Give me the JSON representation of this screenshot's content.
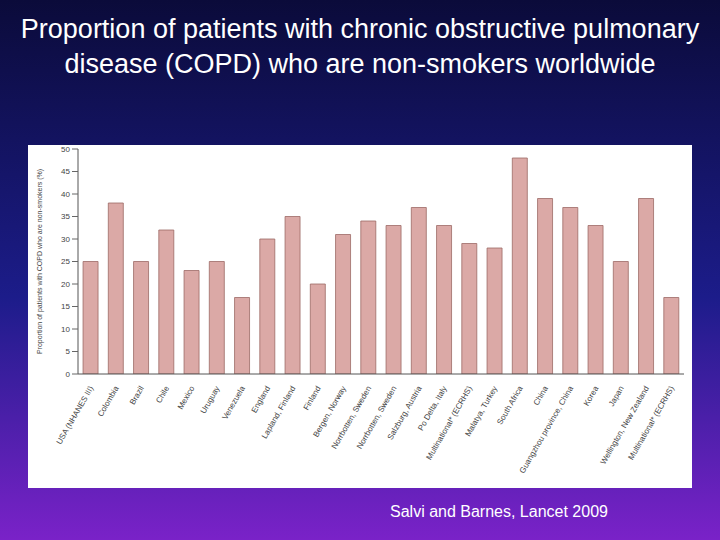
{
  "chart_data": {
    "type": "bar",
    "title": "Proportion of patients with chronic obstructive pulmonary disease (COPD) who are non-smokers worldwide",
    "y_label": "Proportion of patients with COPD who are non-smokers (%)",
    "categories": [
      "USA (NHANES III)",
      "Colombia",
      "Brazil",
      "Chile",
      "Mexico",
      "Uruguay",
      "Venezuela",
      "England",
      "Lapland, Finland",
      "Finland",
      "Bergen, Norway",
      "Norrbotten, Sweden",
      "Norrbotten, Sweden",
      "Salzburg, Austria",
      "Po Delta, Italy",
      "Multinational* (ECRHS)",
      "Malatya, Turkey",
      "South Africa",
      "China",
      "Guangzhou province, China",
      "Korea",
      "Japan",
      "Wellington, New Zealand",
      "Multinational* (ECRHS)"
    ],
    "values": [
      25,
      38,
      25,
      32,
      23,
      25,
      17,
      30,
      35,
      20,
      31,
      34,
      33,
      37,
      33,
      29,
      28,
      48,
      39,
      37,
      33,
      25,
      39,
      17
    ],
    "color": "#dba9a6",
    "ylim": [
      0,
      50
    ],
    "yticks": [
      0,
      5,
      10,
      15,
      20,
      25,
      30,
      35,
      40,
      45,
      50
    ],
    "grid": false,
    "source": "Salvi and Barnes, Lancet 2009"
  }
}
